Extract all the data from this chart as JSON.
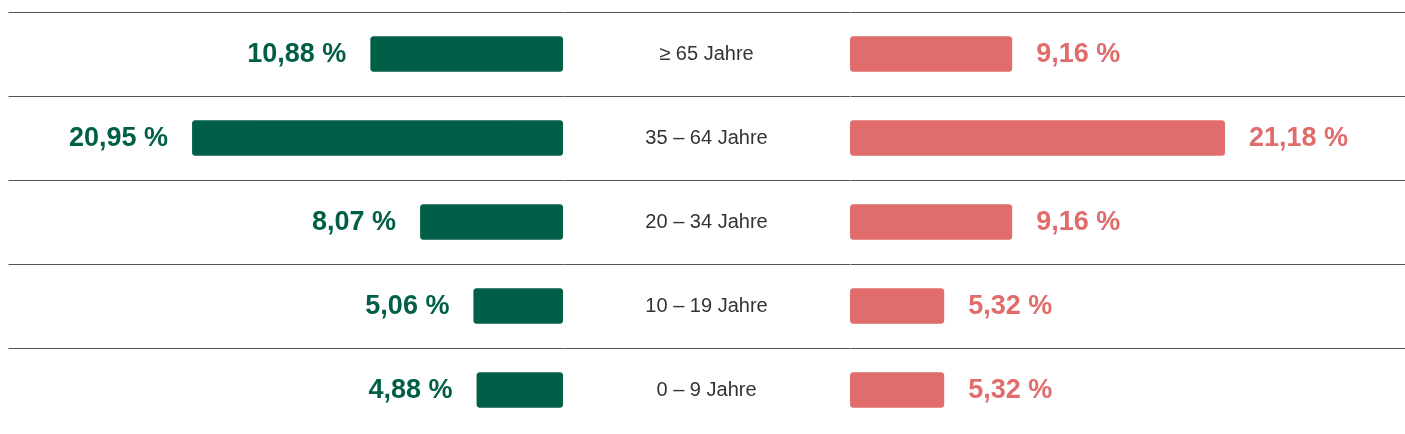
{
  "chart_data": [
    {
      "type": "bar",
      "orientation": "horizontal",
      "grid": "y",
      "categories": [
        "≥ 65 Jahre",
        "35 – 64 Jahre",
        "20 – 34 Jahre",
        "10 – 19 Jahre",
        "0 – 9 Jahre"
      ],
      "series": [
        {
          "color": "#005f46",
          "values": [
            10.88,
            20.95,
            8.07,
            5.06,
            4.88
          ],
          "value_labels": [
            "10,88 %",
            "20,95 %",
            "8,07 %",
            "5,06 %",
            "4,88 %"
          ]
        }
      ]
    },
    {
      "type": "bar",
      "orientation": "horizontal",
      "grid": "y",
      "categories": [
        null,
        null,
        null,
        null,
        null
      ],
      "series": [
        {
          "color": "#e06c6c",
          "values": [
            9.16,
            21.18,
            9.16,
            5.32,
            5.32
          ],
          "value_labels": [
            "9,16 %",
            "21,18 %",
            "9,16 %",
            "5,32 %",
            "5,32 %"
          ]
        }
      ]
    }
  ]
}
